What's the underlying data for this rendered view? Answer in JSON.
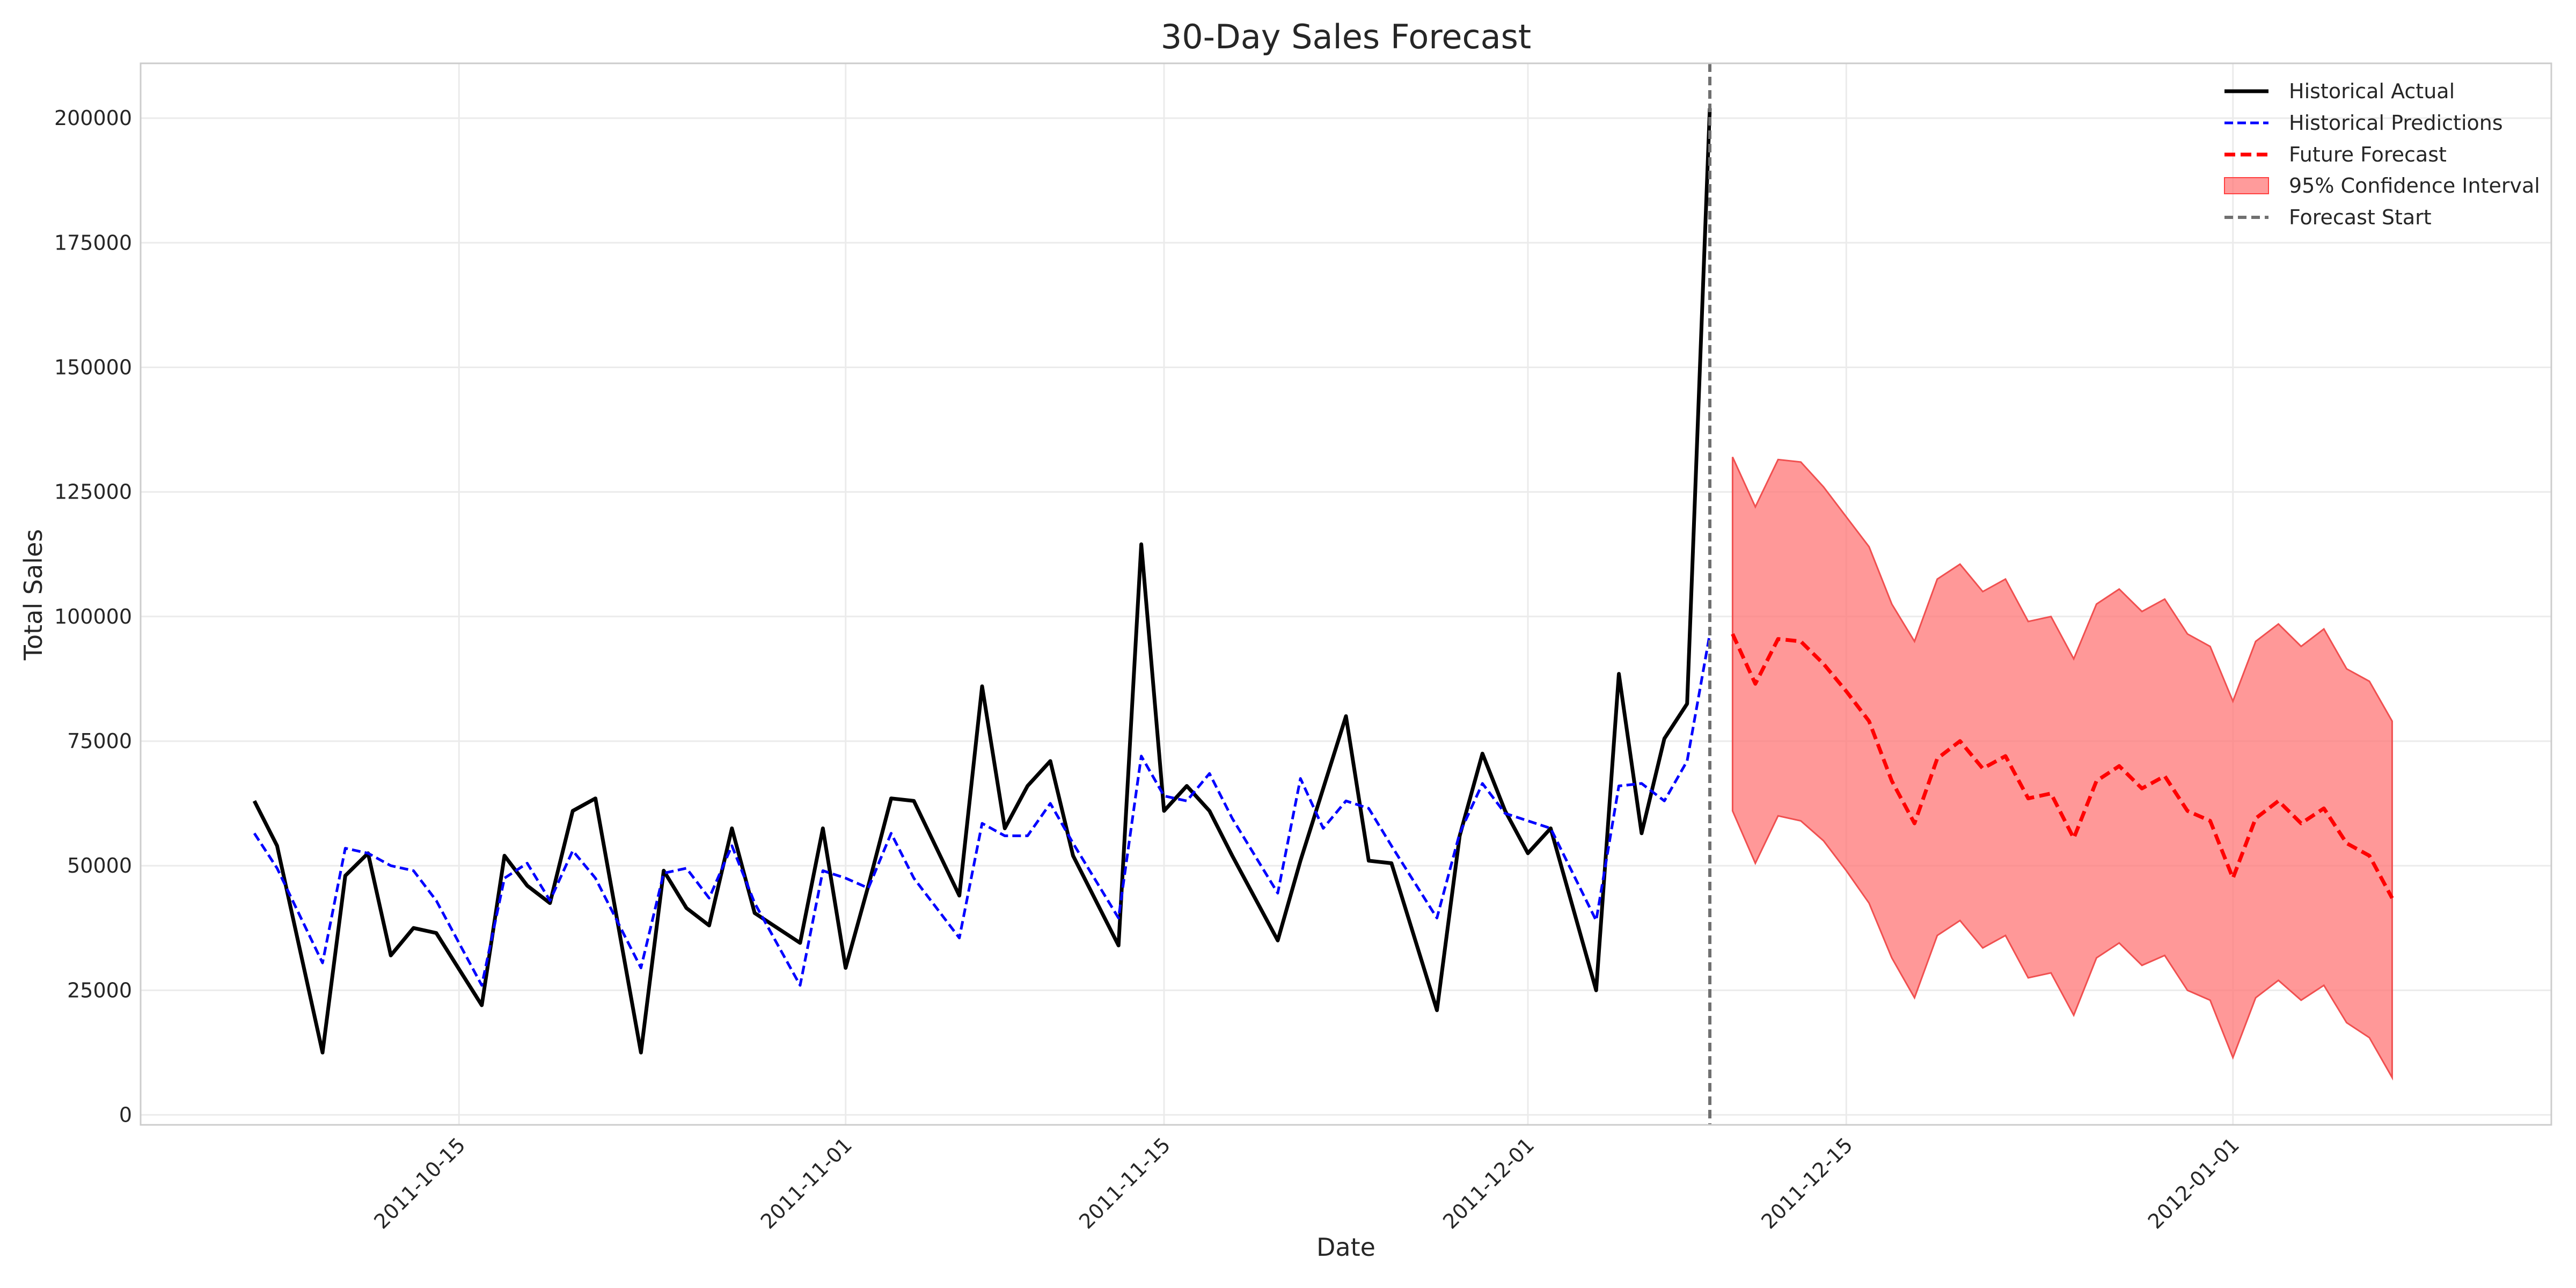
{
  "chart_data": {
    "type": "line",
    "title": "30-Day Sales Forecast",
    "xlabel": "Date",
    "ylabel": "Total Sales",
    "xlim": [
      "2011-10-01",
      "2012-01-15"
    ],
    "ylim": [
      -2000,
      211000
    ],
    "x_ticks": [
      "2011-10-15",
      "2011-11-01",
      "2011-11-15",
      "2011-12-01",
      "2011-12-15",
      "2012-01-01"
    ],
    "y_ticks": [
      0,
      25000,
      50000,
      75000,
      100000,
      125000,
      150000,
      175000,
      200000
    ],
    "grid": true,
    "legend_position": "top-right",
    "forecast_start": "2011-12-09",
    "series": [
      {
        "name": "Historical Actual",
        "style": "solid",
        "color": "#000000",
        "x": [
          "2011-10-06",
          "2011-10-07",
          "2011-10-09",
          "2011-10-10",
          "2011-10-11",
          "2011-10-12",
          "2011-10-13",
          "2011-10-14",
          "2011-10-16",
          "2011-10-17",
          "2011-10-18",
          "2011-10-19",
          "2011-10-20",
          "2011-10-21",
          "2011-10-23",
          "2011-10-24",
          "2011-10-25",
          "2011-10-26",
          "2011-10-27",
          "2011-10-28",
          "2011-10-30",
          "2011-10-31",
          "2011-11-01",
          "2011-11-02",
          "2011-11-03",
          "2011-11-04",
          "2011-11-06",
          "2011-11-07",
          "2011-11-08",
          "2011-11-09",
          "2011-11-10",
          "2011-11-11",
          "2011-11-13",
          "2011-11-14",
          "2011-11-15",
          "2011-11-16",
          "2011-11-17",
          "2011-11-18",
          "2011-11-20",
          "2011-11-21",
          "2011-11-22",
          "2011-11-23",
          "2011-11-24",
          "2011-11-25",
          "2011-11-27",
          "2011-11-28",
          "2011-11-29",
          "2011-11-30",
          "2011-12-01",
          "2011-12-02",
          "2011-12-04",
          "2011-12-05",
          "2011-12-06",
          "2011-12-07",
          "2011-12-08",
          "2011-12-09"
        ],
        "values": [
          63000,
          54000,
          12500,
          48000,
          52500,
          32000,
          37500,
          36500,
          22000,
          52000,
          46000,
          42500,
          61000,
          63500,
          12500,
          49000,
          41500,
          38000,
          57500,
          40500,
          34500,
          57500,
          29500,
          46000,
          63500,
          63000,
          44000,
          86000,
          57500,
          66000,
          71000,
          52000,
          34000,
          114500,
          61000,
          66000,
          61000,
          52000,
          35000,
          51000,
          65500,
          80000,
          51000,
          50500,
          21000,
          56000,
          72500,
          61000,
          52500,
          57500,
          25000,
          88500,
          56500,
          75500,
          82500,
          202000
        ]
      },
      {
        "name": "Historical Predictions",
        "style": "dashed",
        "color": "#0000ff",
        "x": [
          "2011-10-06",
          "2011-10-07",
          "2011-10-09",
          "2011-10-10",
          "2011-10-11",
          "2011-10-12",
          "2011-10-13",
          "2011-10-14",
          "2011-10-16",
          "2011-10-17",
          "2011-10-18",
          "2011-10-19",
          "2011-10-20",
          "2011-10-21",
          "2011-10-23",
          "2011-10-24",
          "2011-10-25",
          "2011-10-26",
          "2011-10-27",
          "2011-10-28",
          "2011-10-30",
          "2011-10-31",
          "2011-11-01",
          "2011-11-02",
          "2011-11-03",
          "2011-11-04",
          "2011-11-06",
          "2011-11-07",
          "2011-11-08",
          "2011-11-09",
          "2011-11-10",
          "2011-11-11",
          "2011-11-13",
          "2011-11-14",
          "2011-11-15",
          "2011-11-16",
          "2011-11-17",
          "2011-11-18",
          "2011-11-20",
          "2011-11-21",
          "2011-11-22",
          "2011-11-23",
          "2011-11-24",
          "2011-11-25",
          "2011-11-27",
          "2011-11-28",
          "2011-11-29",
          "2011-11-30",
          "2011-12-01",
          "2011-12-02",
          "2011-12-04",
          "2011-12-05",
          "2011-12-06",
          "2011-12-07",
          "2011-12-08",
          "2011-12-09"
        ],
        "values": [
          56500,
          49500,
          30500,
          53500,
          52500,
          50000,
          49000,
          43000,
          26000,
          47500,
          50500,
          43000,
          53000,
          47500,
          29500,
          48500,
          49500,
          43500,
          54000,
          42500,
          26000,
          49000,
          47500,
          45500,
          56500,
          47500,
          35500,
          58500,
          56000,
          56000,
          62500,
          54500,
          39500,
          72000,
          64000,
          63000,
          68500,
          59500,
          44500,
          67500,
          57500,
          63000,
          61500,
          54000,
          39500,
          56500,
          66500,
          60500,
          59000,
          57500,
          39000,
          66000,
          66500,
          63000,
          71000,
          96500
        ]
      },
      {
        "name": "Future Forecast",
        "style": "dashed",
        "color": "#ff0000",
        "x": [
          "2011-12-10",
          "2011-12-11",
          "2011-12-12",
          "2011-12-13",
          "2011-12-14",
          "2011-12-15",
          "2011-12-16",
          "2011-12-17",
          "2011-12-18",
          "2011-12-19",
          "2011-12-20",
          "2011-12-21",
          "2011-12-22",
          "2011-12-23",
          "2011-12-24",
          "2011-12-25",
          "2011-12-26",
          "2011-12-27",
          "2011-12-28",
          "2011-12-29",
          "2011-12-30",
          "2011-12-31",
          "2012-01-01",
          "2012-01-02",
          "2012-01-03",
          "2012-01-04",
          "2012-01-05",
          "2012-01-06",
          "2012-01-07",
          "2012-01-08"
        ],
        "values": [
          96500,
          86500,
          95500,
          95000,
          90500,
          85000,
          79000,
          67000,
          58500,
          71500,
          75000,
          69500,
          72000,
          63500,
          64500,
          55500,
          67000,
          70000,
          65500,
          68000,
          61000,
          59000,
          47500,
          59500,
          63000,
          58500,
          61500,
          54500,
          52000,
          43500
        ]
      }
    ],
    "confidence_interval": {
      "name": "95% Confidence Interval",
      "color": "#ff7070",
      "x": [
        "2011-12-10",
        "2011-12-11",
        "2011-12-12",
        "2011-12-13",
        "2011-12-14",
        "2011-12-15",
        "2011-12-16",
        "2011-12-17",
        "2011-12-18",
        "2011-12-19",
        "2011-12-20",
        "2011-12-21",
        "2011-12-22",
        "2011-12-23",
        "2011-12-24",
        "2011-12-25",
        "2011-12-26",
        "2011-12-27",
        "2011-12-28",
        "2011-12-29",
        "2011-12-30",
        "2011-12-31",
        "2012-01-01",
        "2012-01-02",
        "2012-01-03",
        "2012-01-04",
        "2012-01-05",
        "2012-01-06",
        "2012-01-07",
        "2012-01-08"
      ],
      "upper": [
        132000,
        122000,
        131500,
        131000,
        126000,
        120000,
        114000,
        102500,
        95000,
        107500,
        110500,
        105000,
        107500,
        99000,
        100000,
        91500,
        102500,
        105500,
        101000,
        103500,
        96500,
        94000,
        83000,
        95000,
        98500,
        94000,
        97500,
        89500,
        87000,
        79000
      ],
      "lower": [
        61000,
        50500,
        60000,
        59000,
        55000,
        49000,
        42500,
        31500,
        23500,
        36000,
        39000,
        33500,
        36000,
        27500,
        28500,
        20000,
        31500,
        34500,
        30000,
        32000,
        25000,
        23000,
        11500,
        23500,
        27000,
        23000,
        26000,
        18500,
        15500,
        7500
      ]
    },
    "forecast_marker": {
      "name": "Forecast Start",
      "style": "dashed",
      "color": "#707070"
    }
  }
}
